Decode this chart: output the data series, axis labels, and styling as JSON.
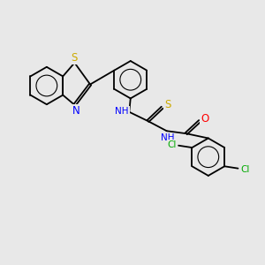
{
  "background_color": "#e8e8e8",
  "atom_colors": {
    "S": "#ccaa00",
    "N": "#0000ff",
    "O": "#ff0000",
    "Cl": "#00aa00",
    "C": "#000000",
    "H": "#000000"
  },
  "bond_color": "#000000",
  "bond_lw": 1.3,
  "fig_width": 3.0,
  "fig_height": 3.0,
  "dpi": 100
}
